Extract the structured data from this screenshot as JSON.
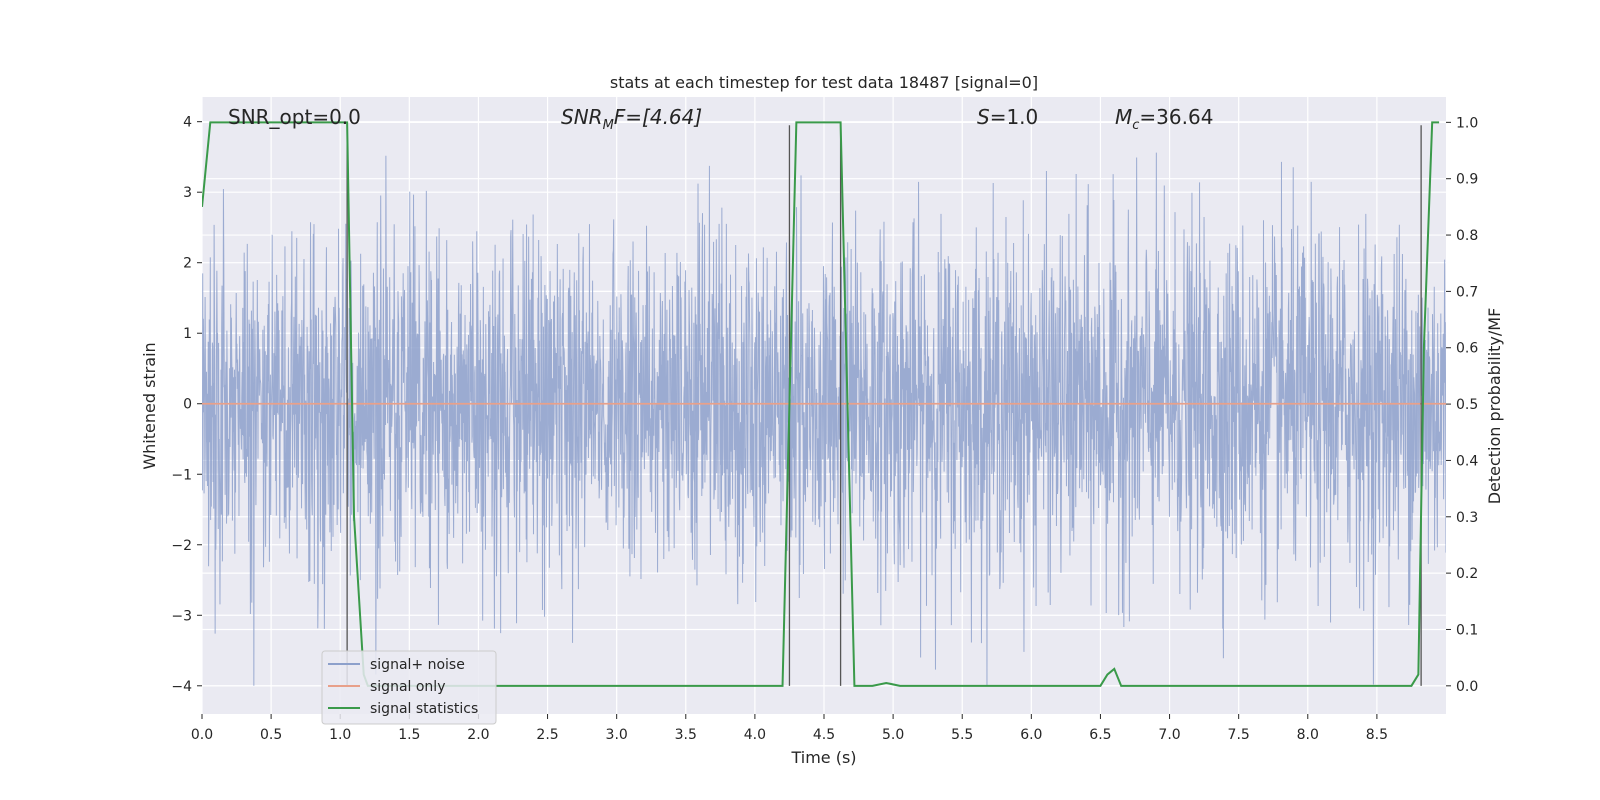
{
  "chart_data": {
    "type": "line",
    "title": "stats at each timestep for test data 18487 [signal=0]",
    "xlabel": "Time (s)",
    "ylabel_left": "Whitened strain",
    "ylabel_right": "Detection probability/MF",
    "xlim": [
      0.0,
      9.0
    ],
    "ylim_left": [
      -4.4,
      4.35
    ],
    "ylim_right": [
      -0.05,
      1.045
    ],
    "xticks": [
      0.0,
      0.5,
      1.0,
      1.5,
      2.0,
      2.5,
      3.0,
      3.5,
      4.0,
      4.5,
      5.0,
      5.5,
      6.0,
      6.5,
      7.0,
      7.5,
      8.0,
      8.5
    ],
    "xtick_labels": [
      "0.0",
      "0.5",
      "1.0",
      "1.5",
      "2.0",
      "2.5",
      "3.0",
      "3.5",
      "4.0",
      "4.5",
      "5.0",
      "5.5",
      "6.0",
      "6.5",
      "7.0",
      "7.5",
      "8.0",
      "8.5"
    ],
    "yticks_left": [
      -4,
      -3,
      -2,
      -1,
      0,
      1,
      2,
      3,
      4
    ],
    "ytick_labels_left": [
      "−4",
      "−3",
      "−2",
      "−1",
      "0",
      "1",
      "2",
      "3",
      "4"
    ],
    "yticks_right": [
      0.0,
      0.1,
      0.2,
      0.3,
      0.4,
      0.5,
      0.6,
      0.7,
      0.8,
      0.9,
      1.0
    ],
    "ytick_labels_right": [
      "0.0",
      "0.1",
      "0.2",
      "0.3",
      "0.4",
      "0.5",
      "0.6",
      "0.7",
      "0.8",
      "0.9",
      "1.0"
    ],
    "grid": true,
    "legend_placement": "lower-left",
    "annotations": {
      "snr_opt_text": "SNR_opt=0.0",
      "snr_mf_main": "SNR",
      "snr_mf_sub": "M",
      "snr_mf_rest": "F=[4.64]",
      "s_main": "S",
      "s_rest": "=1.0",
      "mc_main": "M",
      "mc_sub": "c",
      "mc_rest": "=36.64"
    },
    "series": [
      {
        "name": "signal+ noise",
        "color": "#8da0cb",
        "axis": "left",
        "kind": "noise",
        "amplitude_typical": 2.2,
        "min": -4.0,
        "max": 4.0
      },
      {
        "name": "signal only",
        "color": "#e8a08a",
        "axis": "left",
        "x": [
          0.0,
          9.0
        ],
        "y": [
          0.0,
          0.0
        ]
      },
      {
        "name": "signal statistics",
        "color": "#3a9a4a",
        "axis": "right",
        "x": [
          0.0,
          0.06,
          0.1,
          0.2,
          1.05,
          1.1,
          1.17,
          1.2,
          4.2,
          4.3,
          4.62,
          4.72,
          4.85,
          4.95,
          5.05,
          6.5,
          6.55,
          6.6,
          6.65,
          6.7,
          8.75,
          8.8,
          8.84,
          8.9,
          8.95
        ],
        "y": [
          0.85,
          1.0,
          1.0,
          1.0,
          1.0,
          0.3,
          0.02,
          0.0,
          0.0,
          1.0,
          1.0,
          0.0,
          0.0,
          0.005,
          0.0,
          0.0,
          0.02,
          0.03,
          0.0,
          0.0,
          0.0,
          0.02,
          0.6,
          1.0,
          1.0
        ]
      }
    ],
    "vertical_lines": [
      {
        "x": 1.05,
        "y_top": 3.95,
        "color": "#555555"
      },
      {
        "x": 4.25,
        "y_top": 3.95,
        "color": "#555555"
      },
      {
        "x": 4.62,
        "y_top": 3.95,
        "color": "#555555"
      },
      {
        "x": 8.82,
        "y_top": 3.95,
        "color": "#555555"
      }
    ]
  }
}
